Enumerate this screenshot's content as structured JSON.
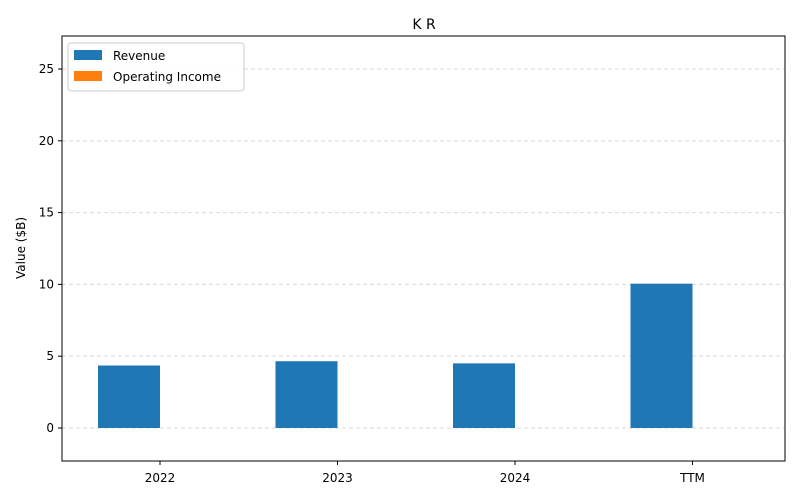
{
  "chart_data": {
    "type": "bar",
    "title": "K R",
    "xlabel": "",
    "ylabel": "Value ($B)",
    "categories": [
      "2022",
      "2023",
      "2024",
      "TTM"
    ],
    "series": [
      {
        "name": "Revenue",
        "color": "#1f77b4",
        "values": [
          4.35,
          4.65,
          4.5,
          10.05
        ]
      },
      {
        "name": "Operating Income",
        "color": "#ff7f0e",
        "values": [
          0,
          0,
          0,
          0
        ]
      }
    ],
    "ylim": [
      -2.3,
      27.3
    ],
    "yticks": [
      0,
      5,
      10,
      15,
      20,
      25
    ],
    "grid": "y-dashed",
    "legend": "top-left"
  }
}
